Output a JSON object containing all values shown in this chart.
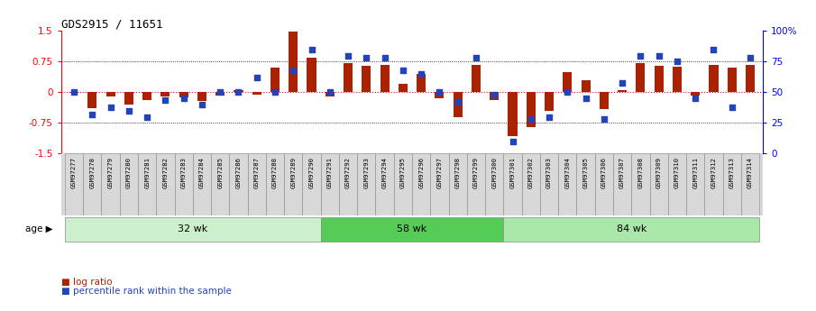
{
  "title": "GDS2915 / 11651",
  "samples": [
    "GSM97277",
    "GSM97278",
    "GSM97279",
    "GSM97280",
    "GSM97281",
    "GSM97282",
    "GSM97283",
    "GSM97284",
    "GSM97285",
    "GSM97286",
    "GSM97287",
    "GSM97288",
    "GSM97289",
    "GSM97290",
    "GSM97291",
    "GSM97292",
    "GSM97293",
    "GSM97294",
    "GSM97295",
    "GSM97296",
    "GSM97297",
    "GSM97298",
    "GSM97299",
    "GSM97300",
    "GSM97301",
    "GSM97302",
    "GSM97303",
    "GSM97304",
    "GSM97305",
    "GSM97306",
    "GSM97307",
    "GSM97308",
    "GSM97309",
    "GSM97310",
    "GSM97311",
    "GSM97312",
    "GSM97313",
    "GSM97314"
  ],
  "log_ratio": [
    -0.02,
    -0.38,
    -0.1,
    -0.3,
    -0.2,
    -0.1,
    -0.12,
    -0.22,
    -0.08,
    0.05,
    -0.05,
    0.6,
    1.5,
    0.85,
    -0.1,
    0.72,
    0.65,
    0.68,
    0.2,
    0.45,
    -0.15,
    -0.62,
    0.68,
    -0.2,
    -1.08,
    -0.85,
    -0.45,
    0.5,
    0.3,
    -0.42,
    0.05,
    0.72,
    0.65,
    0.62,
    -0.08,
    0.68,
    0.6,
    0.68
  ],
  "percentile": [
    50,
    32,
    38,
    35,
    30,
    44,
    45,
    40,
    50,
    50,
    62,
    50,
    68,
    85,
    50,
    80,
    78,
    78,
    68,
    65,
    50,
    42,
    78,
    48,
    10,
    28,
    30,
    50,
    45,
    28,
    58,
    80,
    80,
    75,
    45,
    85,
    38,
    78
  ],
  "groups": [
    {
      "label": "32 wk",
      "start": 0,
      "end": 14
    },
    {
      "label": "58 wk",
      "start": 14,
      "end": 24
    },
    {
      "label": "84 wk",
      "start": 24,
      "end": 38
    }
  ],
  "group_colors": [
    "#ccf0cc",
    "#55cc55",
    "#aae8aa"
  ],
  "bar_color": "#aa2200",
  "dot_color": "#2244bb",
  "ylim": [
    -1.5,
    1.5
  ],
  "yticks_left": [
    -1.5,
    -0.75,
    0,
    0.75,
    1.5
  ],
  "yticks_right": [
    0,
    25,
    50,
    75,
    100
  ],
  "hlines": [
    -0.75,
    0,
    0.75
  ],
  "age_label": "age",
  "legend_bar": "log ratio",
  "legend_dot": "percentile rank within the sample",
  "bg_color": "#ffffff",
  "label_bg_color": "#d8d8d8",
  "plot_bg_color": "#ffffff"
}
